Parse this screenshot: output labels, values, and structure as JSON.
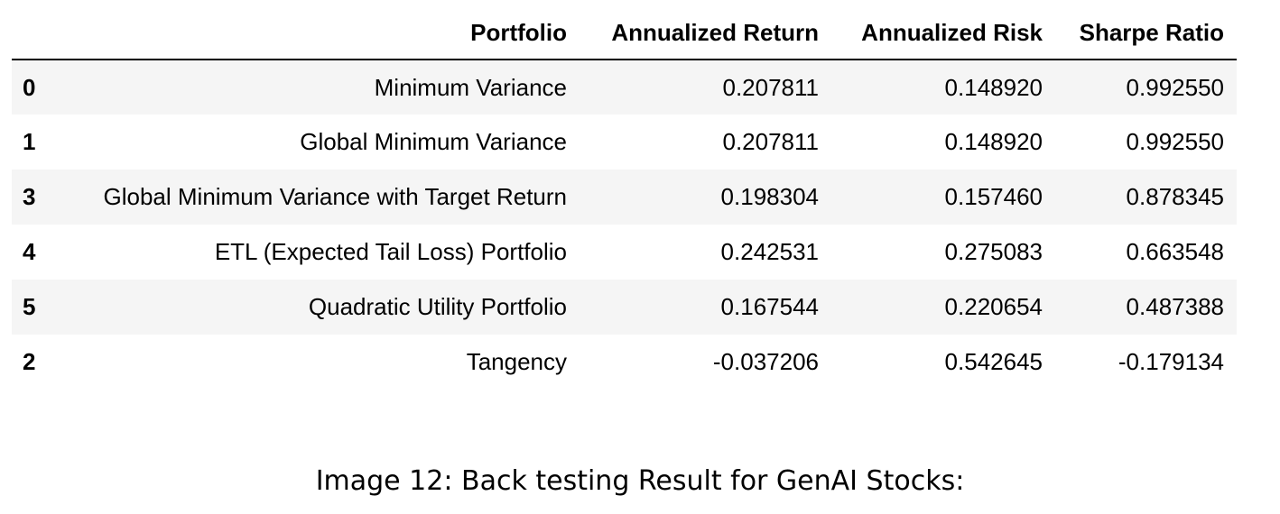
{
  "table": {
    "index_header": "",
    "columns": [
      "Portfolio",
      "Annualized Return",
      "Annualized Risk",
      "Sharpe Ratio"
    ],
    "rows": [
      {
        "index": "0",
        "portfolio": "Minimum Variance",
        "annualized_return": "0.207811",
        "annualized_risk": "0.148920",
        "sharpe_ratio": "0.992550"
      },
      {
        "index": "1",
        "portfolio": "Global Minimum Variance",
        "annualized_return": "0.207811",
        "annualized_risk": "0.148920",
        "sharpe_ratio": "0.992550"
      },
      {
        "index": "3",
        "portfolio": "Global Minimum Variance with Target Return",
        "annualized_return": "0.198304",
        "annualized_risk": "0.157460",
        "sharpe_ratio": "0.878345"
      },
      {
        "index": "4",
        "portfolio": "ETL (Expected Tail Loss) Portfolio",
        "annualized_return": "0.242531",
        "annualized_risk": "0.275083",
        "sharpe_ratio": "0.663548"
      },
      {
        "index": "5",
        "portfolio": "Quadratic Utility Portfolio",
        "annualized_return": "0.167544",
        "annualized_risk": "0.220654",
        "sharpe_ratio": "0.487388"
      },
      {
        "index": "2",
        "portfolio": "Tangency",
        "annualized_return": "-0.037206",
        "annualized_risk": "0.542645",
        "sharpe_ratio": "-0.179134"
      }
    ]
  },
  "caption": "Image 12: Back testing Result for GenAI Stocks:"
}
